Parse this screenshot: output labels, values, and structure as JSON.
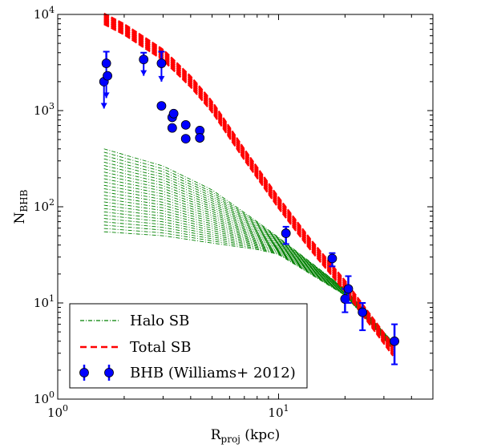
{
  "chart_data": {
    "type": "scatter",
    "title": "",
    "xlabel": "R",
    "xlabel_sub": "proj",
    "xlabel_unit": " (kpc)",
    "ylabel": "N",
    "ylabel_sub": "BHB",
    "xscale": "log",
    "yscale": "log",
    "xlim": [
      1,
      50
    ],
    "ylim": [
      1,
      10000
    ],
    "x_ticks": [
      {
        "value": 1,
        "base": "10",
        "exp": "0"
      },
      {
        "value": 10,
        "base": "10",
        "exp": "1"
      }
    ],
    "y_ticks": [
      {
        "value": 1,
        "base": "10",
        "exp": "0"
      },
      {
        "value": 10,
        "base": "10",
        "exp": "1"
      },
      {
        "value": 100,
        "base": "10",
        "exp": "2"
      },
      {
        "value": 1000,
        "base": "10",
        "exp": "3"
      },
      {
        "value": 10000,
        "base": "10",
        "exp": "4"
      }
    ],
    "legend_position": "lower-left",
    "legend": [
      "Halo SB",
      "Total SB",
      "BHB (Williams+ 2012)"
    ],
    "colors": {
      "halo": "#008000",
      "total": "#ff0000",
      "bhb": "#0000ff"
    },
    "series": [
      {
        "name": "Halo SB",
        "style": "dash-dot",
        "upper_curve": {
          "x": [
            1.62,
            3,
            5,
            8,
            10,
            20,
            33
          ],
          "y": [
            400,
            265,
            150,
            70,
            48,
            14,
            3.9
          ]
        },
        "lower_curve": {
          "x": [
            1.62,
            3,
            5,
            8,
            10,
            20,
            33
          ],
          "y": [
            55,
            50,
            42,
            36,
            32,
            12,
            3.3
          ]
        }
      },
      {
        "name": "Total SB",
        "style": "dashed",
        "curve": {
          "x": [
            1.62,
            2,
            3,
            4,
            5,
            7,
            10,
            14,
            20,
            33
          ],
          "y": [
            9000,
            7000,
            3800,
            2000,
            1100,
            350,
            110,
            40,
            15,
            3.2
          ]
        },
        "band_width_dex": 0.055
      },
      {
        "name": "BHB (Williams+ 2012)",
        "points": [
          {
            "x": 1.62,
            "y": 2000,
            "lower_limit": 1050
          },
          {
            "x": 1.66,
            "y": 3100,
            "upper_err": 4100,
            "lower_limit": 1350
          },
          {
            "x": 1.68,
            "y": 2300
          },
          {
            "x": 2.45,
            "y": 3400,
            "upper_err": 4000,
            "lower_limit": 2300
          },
          {
            "x": 2.95,
            "y": 3100,
            "upper_err": 4100,
            "lower_limit": 2000
          },
          {
            "x": 2.95,
            "y": 1120
          },
          {
            "x": 3.3,
            "y": 850
          },
          {
            "x": 3.35,
            "y": 930
          },
          {
            "x": 3.3,
            "y": 660
          },
          {
            "x": 3.8,
            "y": 710
          },
          {
            "x": 3.8,
            "y": 510
          },
          {
            "x": 4.4,
            "y": 620
          },
          {
            "x": 4.4,
            "y": 520
          },
          {
            "x": 10.8,
            "y": 53,
            "yerr_low": 41,
            "yerr_high": 62
          },
          {
            "x": 17.5,
            "y": 29,
            "yerr_low": 24,
            "yerr_high": 33
          },
          {
            "x": 20.0,
            "y": 11,
            "yerr_low": 8,
            "yerr_high": 14
          },
          {
            "x": 20.7,
            "y": 14,
            "yerr_low": 10,
            "yerr_high": 19
          },
          {
            "x": 24.0,
            "y": 8,
            "yerr_low": 5.2,
            "yerr_high": 10
          },
          {
            "x": 33.5,
            "y": 4,
            "yerr_low": 2.3,
            "yerr_high": 6
          }
        ]
      }
    ]
  }
}
